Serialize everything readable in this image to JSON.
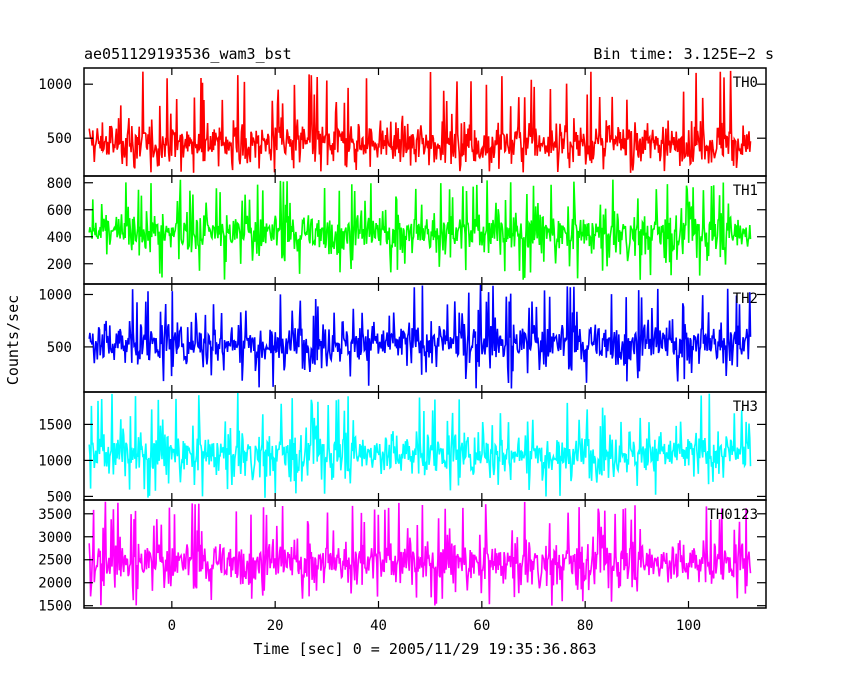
{
  "chart_data": {
    "type": "line",
    "header_left": "ae051129193536_wam3_bst",
    "header_right": "Bin time: 3.125E−2 s",
    "ylabel": "Counts/sec",
    "xlabel": "Time [sec] 0 = 2005/11/29 19:35:36.863",
    "xlim": [
      -17,
      115
    ],
    "x_ticks": [
      0,
      20,
      40,
      60,
      80,
      100
    ],
    "data_x_range": [
      -16,
      112
    ],
    "panels": [
      {
        "name": "TH0",
        "color": "#ff0000",
        "ylim": [
          150,
          1150
        ],
        "y_ticks": [
          500,
          1000
        ],
        "baseline": 460,
        "min": 180,
        "max": 1130
      },
      {
        "name": "TH1",
        "color": "#00ff00",
        "ylim": [
          50,
          850
        ],
        "y_ticks": [
          200,
          400,
          600,
          800
        ],
        "baseline": 430,
        "min": 80,
        "max": 830
      },
      {
        "name": "TH2",
        "color": "#0000ff",
        "ylim": [
          70,
          1100
        ],
        "y_ticks": [
          500,
          1000
        ],
        "baseline": 540,
        "min": 100,
        "max": 1100
      },
      {
        "name": "TH3",
        "color": "#00ffff",
        "ylim": [
          450,
          1950
        ],
        "y_ticks": [
          500,
          1000,
          1500
        ],
        "baseline": 1100,
        "min": 480,
        "max": 1950
      },
      {
        "name": "TH0123",
        "color": "#ff00ff",
        "ylim": [
          1450,
          3800
        ],
        "y_ticks": [
          1500,
          2000,
          2500,
          3000,
          3500
        ],
        "baseline": 2450,
        "min": 1500,
        "max": 3780
      }
    ]
  }
}
